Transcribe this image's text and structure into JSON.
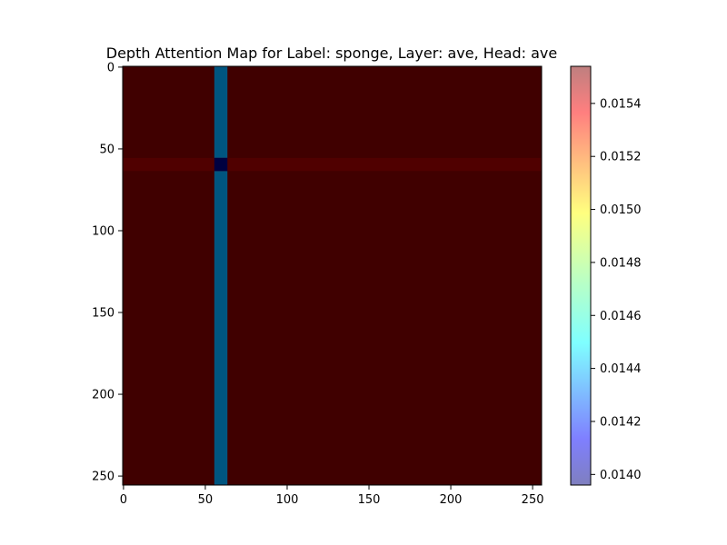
{
  "chart_data": {
    "type": "heatmap",
    "title": "Depth Attention Map for Label: sponge, Layer: ave, Head: ave",
    "xlabel": "",
    "ylabel": "",
    "grid": false,
    "x_range": [
      0,
      255
    ],
    "y_range": [
      0,
      255
    ],
    "y_inverted": true,
    "x_ticks": [
      0,
      50,
      100,
      150,
      200,
      250
    ],
    "y_ticks": [
      0,
      50,
      100,
      150,
      200,
      250
    ],
    "background_value": 0.01554,
    "features": [
      {
        "kind": "column_band",
        "x_from": 56,
        "x_to": 63,
        "value": 0.01442
      },
      {
        "kind": "row_band",
        "y_from": 56,
        "y_to": 63,
        "value": 0.01549
      },
      {
        "kind": "cell",
        "x_from": 56,
        "x_to": 63,
        "y_from": 56,
        "y_to": 63,
        "value": 0.01396
      }
    ],
    "colorbar": {
      "colormap": "jet",
      "alpha": 0.5,
      "min": 0.01396,
      "max": 0.01554,
      "ticks": [
        "0.0140",
        "0.0142",
        "0.0144",
        "0.0146",
        "0.0148",
        "0.0150",
        "0.0152",
        "0.0154"
      ],
      "tick_values": [
        0.014,
        0.0142,
        0.0144,
        0.0146,
        0.0148,
        0.015,
        0.0152,
        0.0154
      ]
    }
  }
}
